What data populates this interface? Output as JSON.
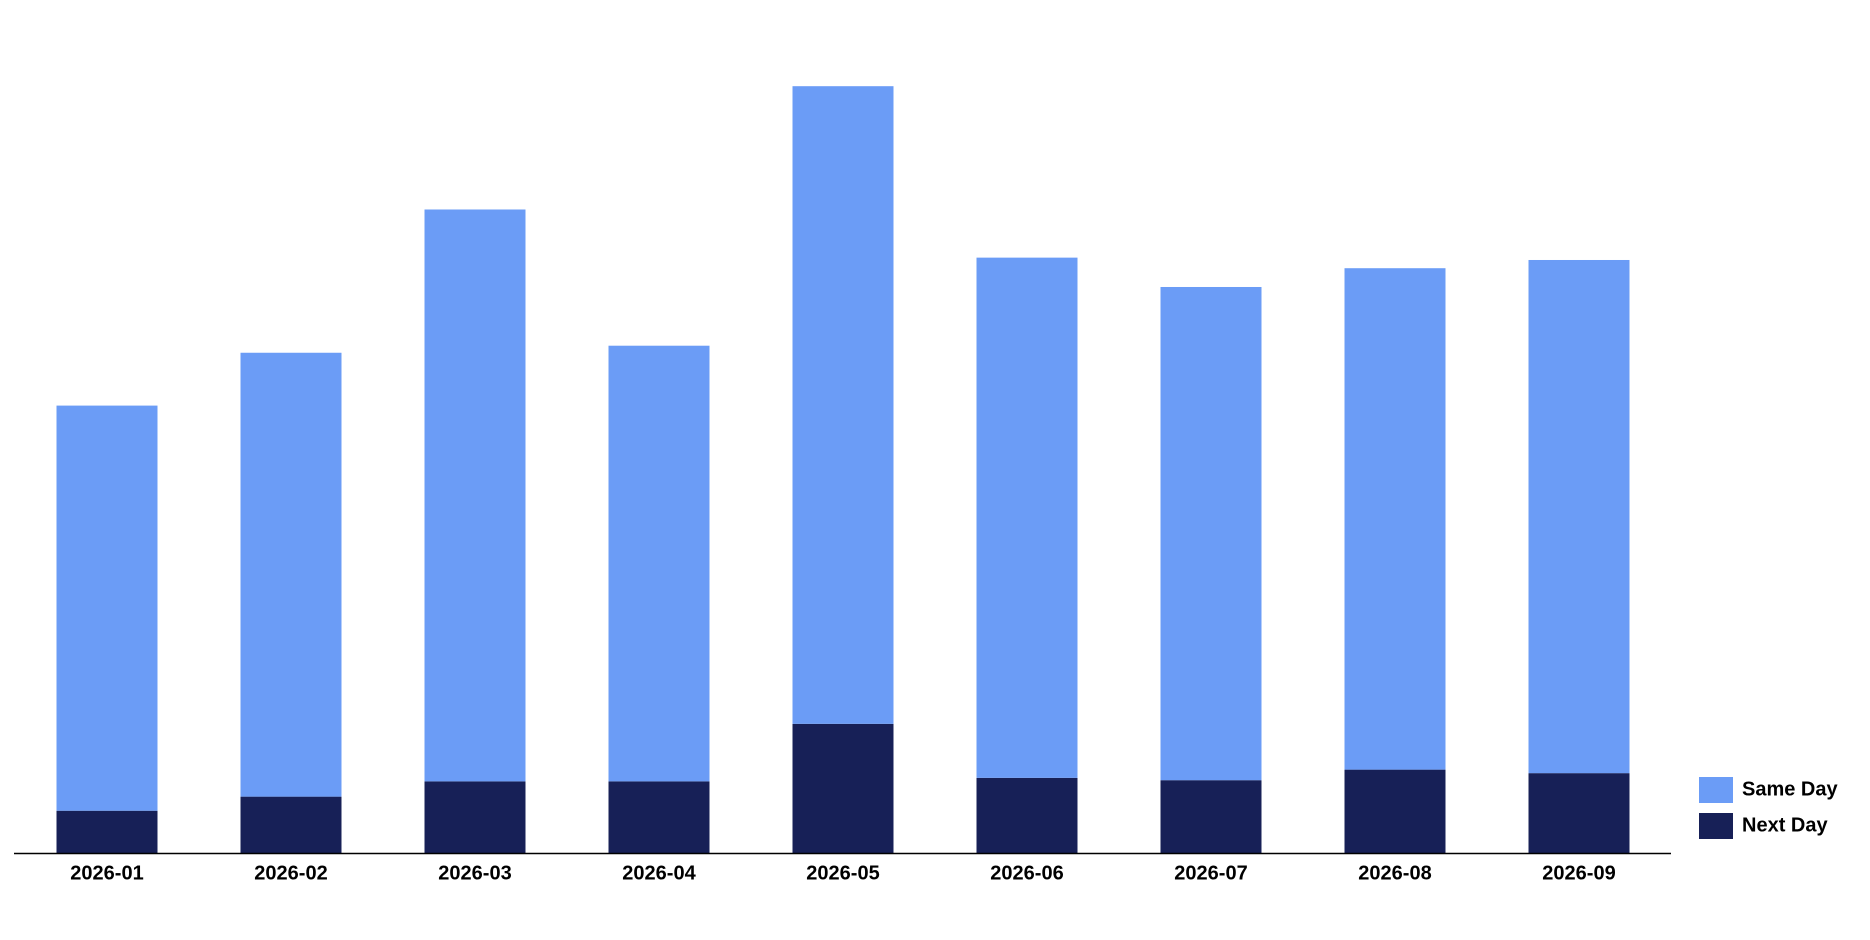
{
  "chart_data": {
    "type": "stacked-bar",
    "categories": [
      "2026-01",
      "2026-02",
      "2026-03",
      "2026-04",
      "2026-05",
      "2026-06",
      "2026-07",
      "2026-08",
      "2026-09"
    ],
    "series": [
      {
        "name": "Same Day",
        "color": "#6b9cf6",
        "values": [
          345,
          378,
          487,
          371,
          543,
          443,
          420,
          427,
          437
        ]
      },
      {
        "name": "Next Day",
        "color": "#172057",
        "values": [
          36,
          48,
          61,
          61,
          110,
          64,
          62,
          71,
          68
        ]
      }
    ],
    "ylim": [
      0,
      700
    ],
    "legend": "right"
  }
}
